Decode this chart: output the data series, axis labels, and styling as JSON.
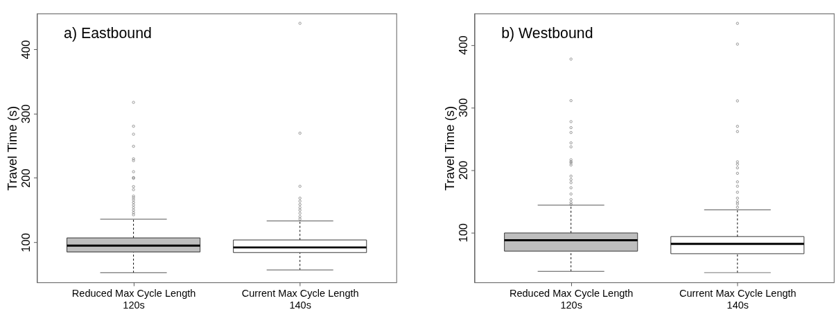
{
  "chart_data": [
    {
      "type": "box",
      "title": "a) Eastbound",
      "ylabel": "Travel Time (s)",
      "categories": [
        "Reduced Max Cycle Length\n120s",
        "Current Max Cycle Length\n140s"
      ],
      "colors": [
        "#bebebe",
        "#ffffff"
      ],
      "boxes": [
        {
          "low": 52.6,
          "q1": 84.9,
          "median": 94.8,
          "q3": 106.8,
          "high": 135.9,
          "outliers": [
            317.5,
            280.4,
            268,
            249.2,
            229.7,
            226.9,
            209.7,
            200.6,
            199.4,
            186.6,
            181.8,
            171.8,
            169,
            165.8,
            161.9,
            157.9,
            153.9,
            149.9,
            145.9,
            142.7
          ]
        },
        {
          "low": 56.9,
          "q1": 84,
          "median": 92,
          "q3": 103.6,
          "high": 133.1,
          "outliers": [
            440.4,
            269.6,
            187,
            168.6,
            163.8,
            158.7,
            153.9,
            149.9,
            145.1,
            139.9,
            136
          ]
        }
      ],
      "ylim": [
        37.5,
        455.5
      ],
      "yticks": [
        100,
        200,
        300,
        400
      ],
      "grid": false
    },
    {
      "type": "box",
      "title": "b) Westbound",
      "ylabel": "Travel Time (s)",
      "categories": [
        "Reduced Max Cycle Length\n120s",
        "Current Max Cycle Length\n140s"
      ],
      "colors": [
        "#bebebe",
        "#ffffff"
      ],
      "boxes": [
        {
          "low": 37.8,
          "q1": 70.1,
          "median": 87.6,
          "q3": 99.2,
          "high": 143.6,
          "outliers": [
            377.2,
            310.8,
            277.2,
            267.6,
            259.8,
            243.2,
            236.9,
            216.2,
            213.3,
            211.2,
            207.9,
            190,
            184.5,
            179.7,
            171.4,
            161.5,
            152.5,
            147.7,
            144.8
          ]
        },
        {
          "low": 35.7,
          "q1": 66,
          "median": 81.7,
          "q3": 93.4,
          "high": 136.1,
          "outliers": [
            434.4,
            401.2,
            310.4,
            269.7,
            261.4,
            212.9,
            209.1,
            203.3,
            194.6,
            180.9,
            173.9,
            164.3,
            154.8,
            149,
            145.6,
            140.2
          ]
        }
      ],
      "ylim": [
        20,
        450
      ],
      "yticks": [
        100,
        200,
        300,
        400
      ],
      "grid": false
    }
  ]
}
